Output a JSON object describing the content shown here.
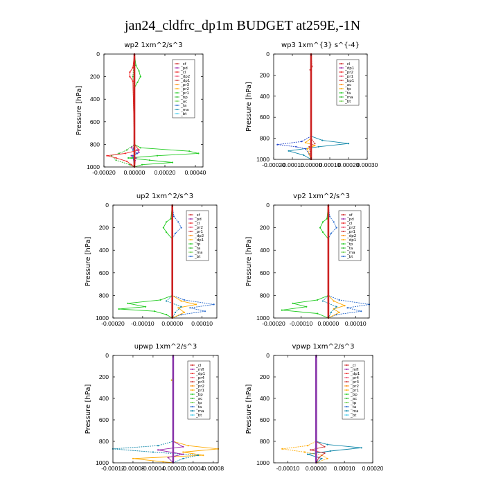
{
  "figure": {
    "title": "jan24_cldfrc_dp1m  BUDGET at259E,-1N"
  },
  "chart_data": [
    {
      "type": "line",
      "title": "wp2   1xm^2/s^3",
      "ylabel": "Pressure [hPa]",
      "xlim": [
        -0.0002,
        0.00045
      ],
      "ylim": [
        1000,
        0
      ],
      "xticks": [
        "-0.00020",
        "0.00000",
        "0.00020",
        "0.00040"
      ],
      "xtick_values": [
        -0.0002,
        0.0,
        0.0002,
        0.0004
      ],
      "yticks": [
        "0",
        "200",
        "400",
        "600",
        "800",
        "1000"
      ],
      "legend": {
        "placement": "top-right",
        "entries": [
          "_sf",
          "_pd",
          "_cl",
          "_dp2",
          "_dp1",
          "_pr3",
          "_pr2",
          "_pr1",
          "_bp",
          "_ac",
          "_ta",
          "_ma",
          "_bt"
        ]
      },
      "series": [
        {
          "name": "_pr1",
          "color": "#22cc22",
          "p": [
            0,
            100,
            150,
            200,
            250,
            300,
            800,
            830,
            860,
            880,
            900,
            920,
            940,
            960,
            980,
            1000
          ],
          "x": [
            0,
            1e-05,
            3e-05,
            4e-05,
            2e-05,
            0,
            0,
            4e-05,
            0.00036,
            0.00042,
            0.00015,
            -4e-05,
            0.0001,
            0.00025,
            5e-05,
            0
          ]
        },
        {
          "name": "_bp",
          "color": "#33bb33",
          "p": [
            0,
            200,
            800,
            850,
            880,
            900,
            940,
            980,
            1000
          ],
          "x": [
            0,
            -1e-05,
            0,
            -5e-05,
            -0.0001,
            -0.00015,
            -0.00012,
            -3e-05,
            0
          ]
        },
        {
          "name": "_dp1",
          "color": "#ee2222",
          "p": [
            0,
            120,
            160,
            200,
            240,
            800,
            850,
            880,
            900,
            920,
            950,
            980,
            1000
          ],
          "x": [
            0,
            -1e-05,
            -3e-05,
            -3e-05,
            -1e-05,
            0,
            3e-05,
            -6e-05,
            -0.00018,
            -0.00012,
            -5e-05,
            -2e-05,
            0
          ]
        },
        {
          "name": "_pd",
          "color": "#9922aa",
          "p": [
            0,
            800,
            830,
            850,
            870,
            900,
            920,
            1000
          ],
          "x": [
            0,
            0,
            -2e-05,
            2e-05,
            3e-05,
            -2e-05,
            1e-05,
            0
          ]
        },
        {
          "name": "_ac",
          "color": "#2266cc",
          "p": [
            0,
            800,
            850,
            880,
            900,
            1000
          ],
          "x": [
            0,
            0,
            -1e-05,
            2e-05,
            -1e-05,
            0
          ]
        },
        {
          "name": "_sf",
          "color": "#cc2222",
          "p": [
            0,
            1000
          ],
          "x": [
            0,
            0
          ]
        }
      ]
    },
    {
      "type": "line",
      "title": "wp3   1xm^{3} s^{-4}",
      "ylabel": "Pressure [hPa]",
      "xlim": [
        -0.0002,
        0.0003
      ],
      "ylim": [
        1000,
        0
      ],
      "xticks": [
        "-0.00020",
        "-0.00010",
        "0.00000",
        "0.00010",
        "0.00020",
        "0.00030"
      ],
      "xtick_values": [
        -0.0002,
        -0.0001,
        0.0,
        0.0001,
        0.0002,
        0.0003
      ],
      "yticks": [
        "0",
        "200",
        "400",
        "600",
        "800",
        "1000"
      ],
      "legend": {
        "placement": "top-right",
        "entries": [
          "_cl",
          "_dp1",
          "_pr2",
          "_pr1",
          "_bp1",
          "_ac",
          "_tp",
          "_ta",
          "_ma",
          "_bt"
        ]
      },
      "series": [
        {
          "name": "_ta",
          "color": "#1188aa",
          "p": [
            0,
            780,
            820,
            850,
            880,
            920,
            960,
            1000
          ],
          "x": [
            0,
            0,
            6e-05,
            0.0002,
            4e-05,
            -0.00012,
            -4e-05,
            0
          ]
        },
        {
          "name": "_tp",
          "color": "#2244cc",
          "p": [
            0,
            780,
            830,
            860,
            880,
            900,
            950,
            1000
          ],
          "x": [
            0,
            0,
            -5e-05,
            -0.00018,
            -8e-05,
            -3e-05,
            -1e-05,
            0
          ]
        },
        {
          "name": "_pr2",
          "color": "#ffaa00",
          "p": [
            0,
            800,
            840,
            870,
            900,
            1000
          ],
          "x": [
            0,
            0,
            -3e-05,
            2e-05,
            -2e-05,
            0
          ]
        },
        {
          "name": "_dp1",
          "color": "#cc3333",
          "p": [
            0,
            120,
            150,
            180,
            800,
            850,
            880,
            1000
          ],
          "x": [
            0,
            5e-06,
            -5e-06,
            0,
            0,
            2e-05,
            -1e-05,
            0
          ]
        },
        {
          "name": "_cl",
          "color": "#cc2222",
          "p": [
            0,
            1000
          ],
          "x": [
            0,
            0
          ]
        }
      ]
    },
    {
      "type": "line",
      "title": "up2   1xm^2/s^3",
      "ylabel": "Pressure [hPa]",
      "xlim": [
        -0.0002,
        0.00015
      ],
      "ylim": [
        1000,
        0
      ],
      "xticks": [
        "-0.00020",
        "-0.00010",
        "0.00000",
        "0.00010"
      ],
      "xtick_values": [
        -0.0002,
        -0.0001,
        0.0,
        0.0001
      ],
      "yticks": [
        "0",
        "200",
        "400",
        "600",
        "800",
        "1000"
      ],
      "legend": {
        "placement": "top-right",
        "entries": [
          "_sf",
          "_pd",
          "_cl",
          "_pr2",
          "_pr1",
          "_dp2",
          "_dp1",
          "_tp",
          "_ta",
          "_ma",
          "_bt"
        ]
      },
      "series": [
        {
          "name": "_dp2",
          "color": "#22cc22",
          "p": [
            0,
            120,
            150,
            200,
            240,
            300,
            800,
            840,
            870,
            900,
            920,
            940,
            970,
            1000
          ],
          "x": [
            0,
            -5e-06,
            -2e-05,
            -3e-05,
            -2e-05,
            0,
            0,
            -4e-05,
            -0.00015,
            -9e-05,
            -0.00018,
            -6e-05,
            -2e-05,
            0
          ]
        },
        {
          "name": "_tp",
          "color": "#2266cc",
          "p": [
            0,
            100,
            150,
            200,
            250,
            300,
            800,
            840,
            880,
            910,
            940,
            970,
            1000
          ],
          "x": [
            0,
            5e-06,
            2e-05,
            3e-05,
            1e-05,
            0,
            0,
            4e-05,
            0.00014,
            6e-05,
            0.00011,
            3e-05,
            0
          ]
        },
        {
          "name": "_pr2",
          "color": "#ffaa00",
          "p": [
            0,
            800,
            850,
            880,
            910,
            950,
            1000
          ],
          "x": [
            0,
            0,
            3e-05,
            8e-05,
            2e-05,
            4e-05,
            0
          ]
        },
        {
          "name": "_ta",
          "color": "#1188aa",
          "p": [
            0,
            800,
            850,
            900,
            950,
            1000
          ],
          "x": [
            0,
            0,
            -2e-05,
            3e-05,
            1e-05,
            0
          ]
        },
        {
          "name": "_sf",
          "color": "#cc2222",
          "p": [
            0,
            1000
          ],
          "x": [
            0,
            0
          ]
        }
      ]
    },
    {
      "type": "line",
      "title": "vp2   1xm^2/s^3",
      "ylabel": "Pressure [hPa]",
      "xlim": [
        -0.0002,
        0.00015
      ],
      "ylim": [
        1000,
        0
      ],
      "xticks": [
        "-0.00020",
        "-0.00010",
        "0.00000",
        "0.00010"
      ],
      "xtick_values": [
        -0.0002,
        -0.0001,
        0.0,
        0.0001
      ],
      "yticks": [
        "0",
        "200",
        "400",
        "600",
        "800",
        "1000"
      ],
      "legend": {
        "placement": "top-right",
        "entries": [
          "_sf",
          "_pd",
          "_cl",
          "_pr2",
          "_pr1",
          "_dp2",
          "_dp1",
          "_tp",
          "_ta",
          "_ma",
          "_bt"
        ]
      },
      "series": [
        {
          "name": "_dp2",
          "color": "#22cc22",
          "p": [
            0,
            120,
            150,
            200,
            240,
            300,
            800,
            840,
            870,
            900,
            930,
            960,
            1000
          ],
          "x": [
            0,
            -5e-06,
            -2e-05,
            -3e-05,
            -2e-05,
            0,
            0,
            -4e-05,
            -0.00013,
            -8e-05,
            -0.00017,
            -4e-05,
            0
          ]
        },
        {
          "name": "_tp",
          "color": "#2266cc",
          "p": [
            0,
            100,
            150,
            200,
            250,
            300,
            800,
            840,
            880,
            910,
            940,
            970,
            1000
          ],
          "x": [
            0,
            5e-06,
            2e-05,
            3e-05,
            1e-05,
            0,
            0,
            4e-05,
            0.00015,
            7e-05,
            0.00012,
            3e-05,
            0
          ]
        },
        {
          "name": "_pr2",
          "color": "#ffaa00",
          "p": [
            0,
            800,
            850,
            890,
            920,
            950,
            1000
          ],
          "x": [
            0,
            0,
            2e-05,
            6e-05,
            2e-05,
            4e-05,
            0
          ]
        },
        {
          "name": "_ta",
          "color": "#1188aa",
          "p": [
            0,
            800,
            850,
            900,
            950,
            1000
          ],
          "x": [
            0,
            0,
            -2e-05,
            3e-05,
            1e-05,
            0
          ]
        },
        {
          "name": "_sf",
          "color": "#cc2222",
          "p": [
            0,
            1000
          ],
          "x": [
            0,
            0
          ]
        }
      ]
    },
    {
      "type": "line",
      "title": "upwp   1xm^2/s^3",
      "ylabel": "Pressure [hPa]",
      "xlim": [
        -0.00012,
        9e-05
      ],
      "ylim": [
        1000,
        0
      ],
      "xticks": [
        "-0.00012",
        "-0.00008",
        "-0.00004",
        "0.00000",
        "0.00004",
        "0.00008"
      ],
      "xtick_values": [
        -0.00012,
        -8e-05,
        -4e-05,
        0.0,
        4e-05,
        8e-05
      ],
      "yticks": [
        "0",
        "200",
        "400",
        "600",
        "800",
        "1000"
      ],
      "legend": {
        "placement": "top-right",
        "entries": [
          "_cl",
          "_mfl",
          "_dp1",
          "_pr4",
          "_pr3",
          "_pr2",
          "_pr1",
          "_bp",
          "_ac",
          "_tp",
          "_ta",
          "_ma",
          "_bt"
        ]
      },
      "series": [
        {
          "name": "_pr2",
          "color": "#ffaa00",
          "p": [
            0,
            800,
            840,
            870,
            900,
            930,
            960,
            990,
            1000
          ],
          "x": [
            0,
            0,
            3e-05,
            9e-05,
            2e-05,
            6e-05,
            -8e-05,
            -2e-05,
            0
          ]
        },
        {
          "name": "_ta",
          "color": "#1188aa",
          "p": [
            0,
            800,
            840,
            870,
            900,
            930,
            960,
            1000
          ],
          "x": [
            0,
            0,
            -3e-05,
            -0.00012,
            -4e-05,
            5e-05,
            2e-05,
            0
          ]
        },
        {
          "name": "_dp1",
          "color": "#9922aa",
          "p": [
            0,
            800,
            850,
            880,
            920,
            950,
            1000
          ],
          "x": [
            0,
            0,
            2e-05,
            -3e-05,
            2e-05,
            -1e-05,
            0
          ]
        },
        {
          "name": "_pr1",
          "color": "#ccbb00",
          "p": [
            0,
            200,
            230,
            260,
            800,
            1000
          ],
          "x": [
            0,
            0,
            -3e-06,
            0,
            0,
            0
          ]
        },
        {
          "name": "_cl",
          "color": "#8833aa",
          "p": [
            0,
            1000
          ],
          "x": [
            0,
            0
          ]
        }
      ]
    },
    {
      "type": "line",
      "title": "vpwp   1xm^2/s^3",
      "ylabel": "Pressure [hPa]",
      "xlim": [
        -0.00015,
        0.0002
      ],
      "ylim": [
        1000,
        0
      ],
      "xticks": [
        "-0.00010",
        "0.00000",
        "0.00010",
        "0.00020"
      ],
      "xtick_values": [
        -0.0001,
        0.0,
        0.0001,
        0.0002
      ],
      "yticks": [
        "0",
        "200",
        "400",
        "600",
        "800",
        "1000"
      ],
      "legend": {
        "placement": "top-right",
        "entries": [
          "_cl",
          "_mfl",
          "_dp1",
          "_pr4",
          "_pr3",
          "_pr2",
          "_pr1",
          "_bp",
          "_ac",
          "_tp",
          "_ta",
          "_ma",
          "_bt"
        ]
      },
      "series": [
        {
          "name": "_ta",
          "color": "#1188aa",
          "p": [
            0,
            800,
            830,
            860,
            890,
            920,
            960,
            1000
          ],
          "x": [
            0,
            0,
            4e-05,
            0.00016,
            5e-05,
            -3e-05,
            2e-05,
            0
          ]
        },
        {
          "name": "_pr2",
          "color": "#ffaa00",
          "p": [
            0,
            800,
            840,
            870,
            900,
            930,
            960,
            1000
          ],
          "x": [
            0,
            0,
            -3e-05,
            -0.00012,
            -4e-05,
            2e-05,
            4e-05,
            0
          ]
        },
        {
          "name": "_dp1",
          "color": "#cc3333",
          "p": [
            0,
            800,
            850,
            880,
            910,
            950,
            1000
          ],
          "x": [
            0,
            0,
            3e-05,
            -2e-05,
            3e-05,
            1e-05,
            0
          ]
        },
        {
          "name": "_cl",
          "color": "#8833aa",
          "p": [
            0,
            1000
          ],
          "x": [
            0,
            0
          ]
        }
      ]
    }
  ]
}
